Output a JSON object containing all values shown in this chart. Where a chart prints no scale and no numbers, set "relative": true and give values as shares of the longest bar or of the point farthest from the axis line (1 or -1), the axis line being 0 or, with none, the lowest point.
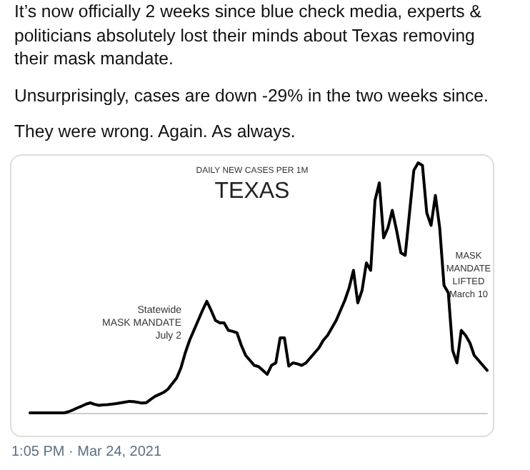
{
  "chart_data": {
    "type": "line",
    "title": "TEXAS",
    "subtitle": "DAILY NEW CASES PER 1M",
    "relative": true,
    "grid": false,
    "marker": "none",
    "line_style": "solid",
    "annotations": [
      "It’s now officially 2 weeks since blue check media, experts & politicians absolutely lost their minds about Texas removing their mask mandate.",
      "Unsurprisingly, cases are down -29% in the two weeks since.",
      "They were wrong. Again. As always.",
      "Statewide\nMASK MANDATE\nJuly 2",
      "MASK\nMANDATE\nLIFTED\nMarch 10",
      "1:05 PM · Mar 24, 2021"
    ],
    "categories": [
      null,
      null,
      null,
      null,
      null,
      null,
      null,
      null,
      null,
      null,
      null,
      null,
      null,
      null,
      null,
      null,
      null,
      null,
      null,
      null,
      null,
      null,
      null,
      null,
      null,
      null,
      null,
      null,
      null,
      null,
      null,
      null,
      null,
      null,
      null,
      null,
      null,
      null,
      null,
      null,
      null,
      null,
      null,
      null,
      null,
      null,
      null,
      null,
      null,
      null,
      null,
      null,
      null,
      null,
      null,
      null,
      null,
      null,
      null,
      null,
      null,
      null,
      null,
      null,
      null,
      null,
      null,
      null,
      null,
      null,
      null,
      null,
      null,
      null,
      null,
      null,
      null,
      null,
      null,
      null,
      null,
      null,
      null,
      null,
      null,
      null,
      null,
      null,
      null,
      null,
      null,
      null,
      null,
      null,
      null,
      null,
      null,
      null,
      null,
      null,
      null,
      null,
      null,
      null,
      null,
      null,
      null
    ],
    "series": [
      {
        "color": "#000000",
        "values": [
          0,
          0,
          0,
          0,
          0,
          0,
          0,
          0,
          0,
          0.005,
          0.012,
          0.02,
          0.027,
          0.035,
          0.04,
          0.034,
          0.03,
          0.032,
          0.033,
          0.035,
          0.037,
          0.04,
          0.043,
          0.046,
          0.045,
          0.042,
          0.039,
          0.041,
          0.054,
          0.066,
          0.074,
          0.082,
          0.095,
          0.117,
          0.139,
          0.18,
          0.24,
          0.29,
          0.33,
          0.37,
          0.41,
          0.446,
          0.41,
          0.37,
          0.36,
          0.36,
          0.33,
          0.326,
          0.32,
          0.27,
          0.23,
          0.21,
          0.19,
          0.185,
          0.17,
          0.154,
          0.19,
          0.2,
          0.3,
          0.3,
          0.187,
          0.2,
          0.196,
          0.19,
          0.2,
          0.22,
          0.24,
          0.26,
          0.29,
          0.31,
          0.34,
          0.37,
          0.41,
          0.45,
          0.5,
          0.57,
          0.44,
          0.49,
          0.6,
          0.57,
          0.85,
          0.92,
          0.7,
          0.74,
          0.81,
          0.73,
          0.64,
          0.63,
          0.8,
          0.97,
          1,
          0.99,
          0.8,
          0.75,
          0.87,
          0.74,
          0.51,
          0.48,
          0.25,
          0.2,
          0.33,
          0.31,
          0.28,
          0.23,
          0.21,
          0.19,
          0.17
        ]
      }
    ]
  }
}
